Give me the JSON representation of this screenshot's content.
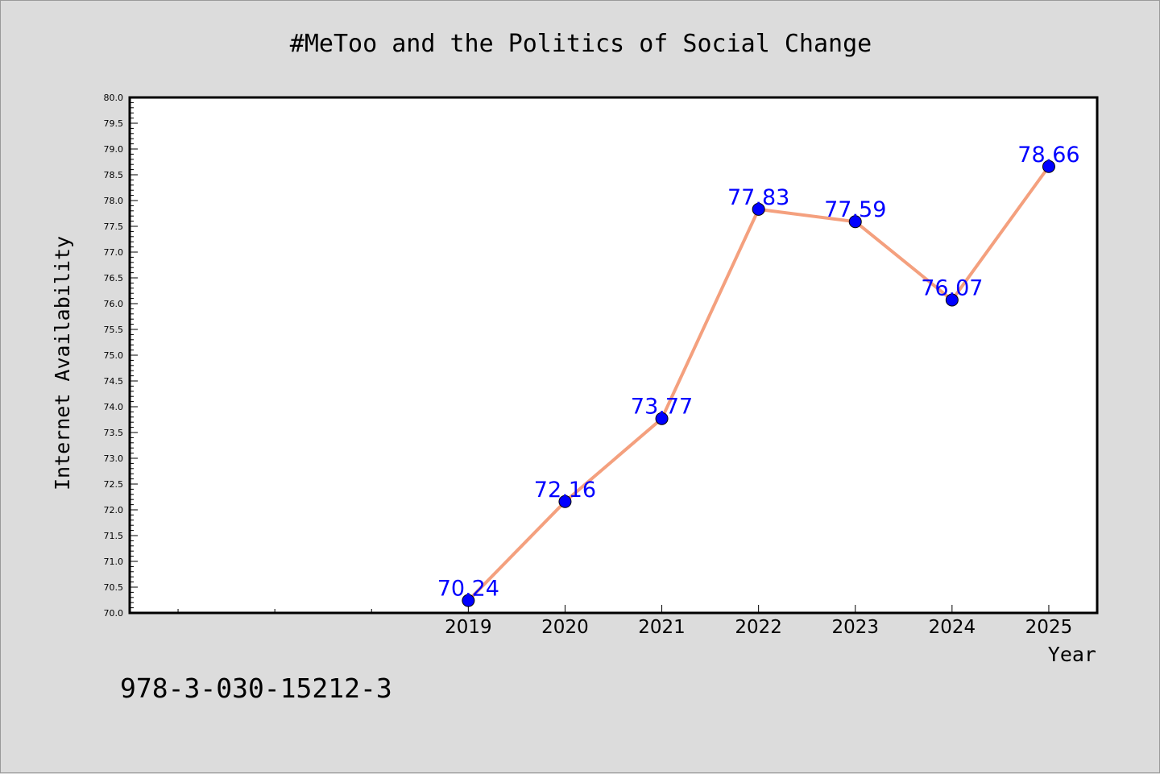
{
  "chart_data": {
    "type": "line",
    "title": "#MeToo and the Politics of Social Change",
    "xlabel": "Year",
    "ylabel": "Internet Availability",
    "x": [
      2019,
      2020,
      2021,
      2022,
      2023,
      2024,
      2025
    ],
    "x_tick_labels": [
      "2019",
      "2020",
      "2021",
      "2022",
      "2023",
      "2024",
      "2025"
    ],
    "xlim": [
      2015.5,
      2025.5
    ],
    "ylim": [
      70.0,
      80.0
    ],
    "y_ticks": [
      "70.0",
      "70.5",
      "71.0",
      "71.5",
      "72.0",
      "72.5",
      "73.0",
      "73.5",
      "74.0",
      "74.5",
      "75.0",
      "75.5",
      "76.0",
      "76.5",
      "77.0",
      "77.5",
      "78.0",
      "78.5",
      "79.0",
      "79.5",
      "80.0"
    ],
    "series": [
      {
        "values": [
          70.24,
          72.16,
          73.77,
          77.83,
          77.59,
          76.07,
          78.66
        ],
        "labels": [
          "70.24",
          "72.16",
          "73.77",
          "77.83",
          "77.59",
          "76.07",
          "78.66"
        ]
      }
    ],
    "grid": false,
    "colors": {
      "line": "#f4a07e",
      "marker": "#0000ff",
      "data_label": "#0000ff",
      "plot_background": "#ffffff",
      "page_background": "#dcdcdc"
    }
  },
  "footnote": "978-3-030-15212-3"
}
